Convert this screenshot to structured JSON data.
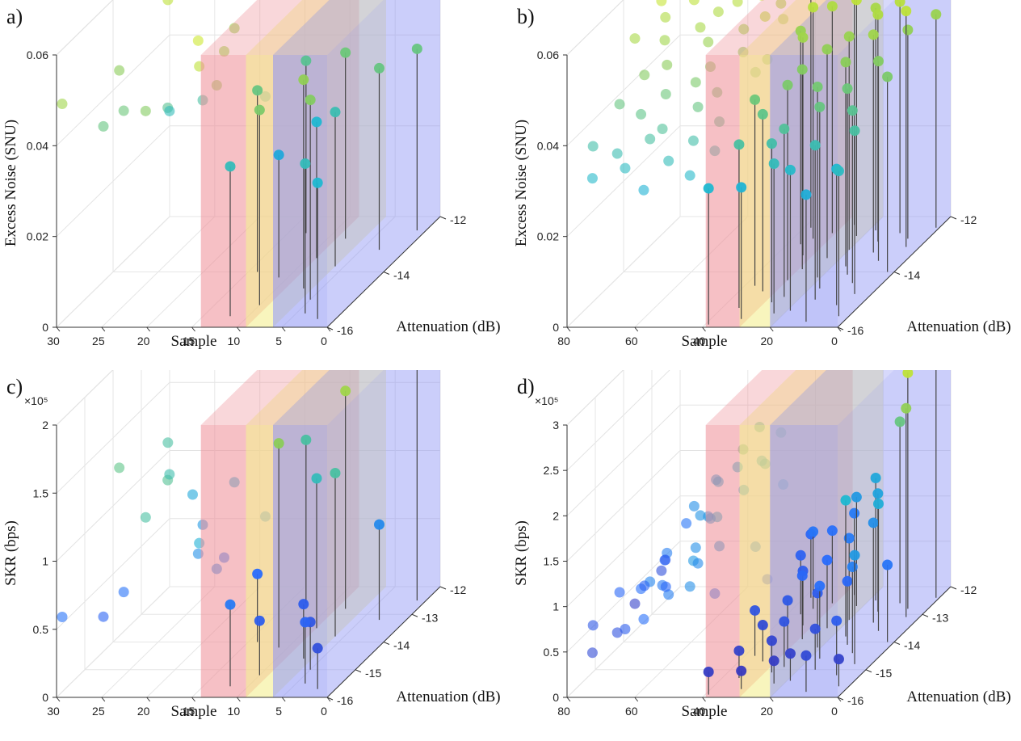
{
  "chart_data": [
    {
      "type": "scatter",
      "panel_label": "a)",
      "xlabel": "Sample",
      "ylabel": "Attenuation (dB)",
      "zlabel": "Excess Noise (SNU)",
      "z_exponent": "",
      "xlim": [
        0,
        30
      ],
      "ylim": [
        -16,
        -12
      ],
      "zlim": [
        0,
        0.06
      ],
      "x_ticks": [
        "0",
        "5",
        "10",
        "15",
        "20",
        "25",
        "30"
      ],
      "y_ticks": [
        "-16",
        "-14",
        "-12"
      ],
      "z_ticks": [
        "0",
        "0.02",
        "0.04",
        "0.06"
      ],
      "bands": [
        {
          "color": "#ef8c95",
          "x_from": 14,
          "x_to": 9
        },
        {
          "color": "#f2ec86",
          "x_from": 9,
          "x_to": 6
        },
        {
          "color": "#8c93f4",
          "x_from": 6,
          "x_to": 0
        }
      ],
      "series": [
        {
          "x": [
            1,
            2,
            3,
            4,
            5,
            6,
            7,
            8,
            9,
            10,
            11,
            12,
            13,
            14,
            15,
            16,
            17,
            18,
            19,
            20,
            21,
            22,
            23,
            24,
            25,
            26,
            27,
            28,
            29,
            30
          ],
          "y": [
            -12.5,
            -15.7,
            -13.2,
            -15.5,
            -15.0,
            -13.8,
            -14.6,
            -12.8,
            -13.5,
            -15.2,
            -14.2,
            -15.6,
            -12.6,
            -14.0,
            -13.4,
            -14.8,
            -15.1,
            -13.9,
            -14.5,
            -12.9,
            -13.7,
            -15.4,
            -14.3,
            -13.1,
            -13.6,
            -14.9,
            -15.3,
            -12.7,
            -14.1,
            -15.8
          ],
          "z": [
            0.04,
            0.03,
            0.04,
            0.033,
            0.044,
            0.034,
            0.046,
            0.041,
            0.03,
            0.043,
            0.027,
            0.033,
            0.038,
            0.04,
            0.035,
            0.046,
            0.052,
            0.048,
            0.054,
            0.047,
            0.036,
            0.044,
            0.038,
            0.057,
            0.033,
            0.041,
            0.04,
            0.052,
            0.045,
            0.048
          ]
        }
      ]
    },
    {
      "type": "scatter",
      "panel_label": "b)",
      "xlabel": "Sample",
      "ylabel": "Attenuation (dB)",
      "zlabel": "Excess Noise (SNU)",
      "z_exponent": "",
      "xlim": [
        0,
        80
      ],
      "ylim": [
        -16,
        -12
      ],
      "zlim": [
        0,
        0.06
      ],
      "x_ticks": [
        "0",
        "20",
        "40",
        "60",
        "80"
      ],
      "y_ticks": [
        "-16",
        "-14",
        "-12"
      ],
      "z_ticks": [
        "0",
        "0.02",
        "0.04",
        "0.06"
      ],
      "bands": [
        {
          "color": "#ef8c95",
          "x_from": 39,
          "x_to": 29
        },
        {
          "color": "#f2ec86",
          "x_from": 29,
          "x_to": 20
        },
        {
          "color": "#8c93f4",
          "x_from": 20,
          "x_to": 0
        }
      ],
      "series": [
        {
          "x": [
            1,
            2,
            3,
            4,
            5,
            6,
            7,
            8,
            9,
            10,
            11,
            12,
            13,
            14,
            15,
            16,
            17,
            18,
            19,
            20,
            21,
            22,
            23,
            24,
            25,
            26,
            27,
            28,
            29,
            30,
            31,
            32,
            33,
            34,
            35,
            36,
            37,
            38,
            39,
            40,
            41,
            42,
            43,
            44,
            45,
            46,
            47,
            48,
            49,
            50,
            51,
            52,
            53,
            54,
            55,
            56,
            57,
            58,
            59,
            60,
            61,
            62,
            63,
            64,
            65,
            66,
            67,
            68,
            69,
            70,
            71,
            72,
            73,
            74,
            75,
            76,
            77,
            78,
            79,
            80
          ],
          "y": [
            -12.4,
            -14.0,
            -15.6,
            -13.1,
            -14.8,
            -12.8,
            -15.2,
            -13.6,
            -14.4,
            -12.6,
            -15.8,
            -13.3,
            -14.1,
            -12.9,
            -15.0,
            -13.8,
            -14.6,
            -12.5,
            -15.4,
            -13.2,
            -14.2,
            -12.7,
            -15.5,
            -13.5,
            -14.9,
            -12.3,
            -15.1,
            -13.9,
            -14.3,
            -12.6,
            -15.7,
            -13.4,
            -14.7,
            -12.8,
            -15.3,
            -13.0,
            -14.5,
            -12.4,
            -15.9,
            -13.7,
            -14.0,
            -12.9,
            -15.2,
            -13.3,
            -14.8,
            -12.5,
            -15.6,
            -13.6,
            -14.4,
            -12.7,
            -15.0,
            -13.1,
            -14.6,
            -12.3,
            -15.4,
            -13.8,
            -14.2,
            -12.6,
            -15.8,
            -13.4,
            -14.9,
            -12.8,
            -15.1,
            -13.2,
            -14.3,
            -12.4,
            -15.5,
            -13.9,
            -14.7,
            -12.7,
            -15.3,
            -13.5,
            -14.1,
            -12.5,
            -15.7,
            -13.0,
            -14.5,
            -12.9,
            -15.2,
            -13.6
          ],
          "z": [
            0.047,
            0.043,
            0.032,
            0.052,
            0.036,
            0.046,
            0.03,
            0.044,
            0.038,
            0.051,
            0.028,
            0.048,
            0.041,
            0.05,
            0.034,
            0.045,
            0.04,
            0.049,
            0.031,
            0.047,
            0.042,
            0.052,
            0.033,
            0.046,
            0.037,
            0.053,
            0.035,
            0.044,
            0.043,
            0.05,
            0.029,
            0.048,
            0.039,
            0.051,
            0.036,
            0.047,
            0.041,
            0.054,
            0.03,
            0.045,
            0.044,
            0.049,
            0.034,
            0.052,
            0.038,
            0.05,
            0.031,
            0.046,
            0.042,
            0.053,
            0.035,
            0.048,
            0.04,
            0.055,
            0.033,
            0.044,
            0.043,
            0.051,
            0.029,
            0.047,
            0.037,
            0.05,
            0.036,
            0.049,
            0.041,
            0.056,
            0.032,
            0.045,
            0.039,
            0.052,
            0.034,
            0.048,
            0.044,
            0.054,
            0.031,
            0.05,
            0.04,
            0.053,
            0.035,
            0.049
          ]
        }
      ]
    },
    {
      "type": "scatter",
      "panel_label": "c)",
      "xlabel": "Sample",
      "ylabel": "Attenuation (dB)",
      "zlabel": "SKR (bps)",
      "z_exponent": "×10⁵",
      "xlim": [
        0,
        30
      ],
      "ylim": [
        -16,
        -12
      ],
      "zlim": [
        0,
        200000
      ],
      "x_ticks": [
        "0",
        "5",
        "10",
        "15",
        "20",
        "25",
        "30"
      ],
      "y_ticks": [
        "-16",
        "-15",
        "-14",
        "-13",
        "-12"
      ],
      "z_ticks": [
        "0",
        "0.5",
        "1",
        "1.5",
        "2"
      ],
      "bands": [
        {
          "color": "#ef8c95",
          "x_from": 14,
          "x_to": 9
        },
        {
          "color": "#f2ec86",
          "x_from": 9,
          "x_to": 6
        },
        {
          "color": "#8c93f4",
          "x_from": 6,
          "x_to": 0
        }
      ],
      "series": [
        {
          "x": [
            1,
            2,
            3,
            4,
            5,
            6,
            7,
            8,
            9,
            10,
            11,
            12,
            13,
            14,
            15,
            16,
            17,
            18,
            19,
            20,
            21,
            22,
            23,
            24,
            25,
            26,
            27,
            28,
            29,
            30
          ],
          "y": [
            -12.5,
            -15.7,
            -13.2,
            -15.5,
            -15.0,
            -13.8,
            -14.6,
            -12.8,
            -13.5,
            -15.2,
            -14.2,
            -15.6,
            -12.6,
            -14.0,
            -13.4,
            -14.8,
            -15.1,
            -13.9,
            -14.5,
            -12.9,
            -13.7,
            -15.4,
            -14.3,
            -13.1,
            -13.6,
            -14.9,
            -15.3,
            -12.7,
            -14.1,
            -15.8
          ],
          "z": [
            175000,
            30000,
            70000,
            45000,
            35000,
            120000,
            40000,
            160000,
            110000,
            40000,
            150000,
            60000,
            120000,
            50000,
            80000,
            70000,
            95000,
            60000,
            75000,
            95000,
            80000,
            120000,
            125000,
            90000,
            115000,
            55000,
            45000,
            120000,
            130000,
            55000
          ]
        }
      ]
    },
    {
      "type": "scatter",
      "panel_label": "d)",
      "xlabel": "Sample",
      "ylabel": "Attenuation (dB)",
      "zlabel": "SKR (bps)",
      "z_exponent": "×10⁵",
      "xlim": [
        0,
        80
      ],
      "ylim": [
        -16,
        -12
      ],
      "zlim": [
        0,
        300000
      ],
      "x_ticks": [
        "0",
        "20",
        "40",
        "60",
        "80"
      ],
      "y_ticks": [
        "-16",
        "-15",
        "-14",
        "-13",
        "-12"
      ],
      "z_ticks": [
        "0",
        "0.5",
        "1",
        "1.5",
        "2",
        "2.5",
        "3"
      ],
      "bands": [
        {
          "color": "#ef8c95",
          "x_from": 39,
          "x_to": 29
        },
        {
          "color": "#f2ec86",
          "x_from": 29,
          "x_to": 20
        },
        {
          "color": "#8c93f4",
          "x_from": 20,
          "x_to": 0
        }
      ],
      "series": [
        {
          "x": [
            1,
            2,
            3,
            4,
            5,
            6,
            7,
            8,
            9,
            10,
            11,
            12,
            13,
            14,
            15,
            16,
            17,
            18,
            19,
            20,
            21,
            22,
            23,
            24,
            25,
            26,
            27,
            28,
            29,
            30,
            31,
            32,
            33,
            34,
            35,
            36,
            37,
            38,
            39,
            40,
            41,
            42,
            43,
            44,
            45,
            46,
            47,
            48,
            49,
            50,
            51,
            52,
            53,
            54,
            55,
            56,
            57,
            58,
            59,
            60,
            61,
            62,
            63,
            64,
            65,
            66,
            67,
            68,
            69,
            70,
            71,
            72,
            73,
            74,
            75,
            76,
            77,
            78,
            79,
            80
          ],
          "y": [
            -12.4,
            -14.0,
            -15.6,
            -13.1,
            -14.8,
            -12.8,
            -15.2,
            -13.6,
            -14.4,
            -12.6,
            -15.8,
            -13.3,
            -14.1,
            -12.9,
            -15.0,
            -13.8,
            -14.6,
            -12.5,
            -15.4,
            -13.2,
            -14.2,
            -12.7,
            -15.5,
            -13.5,
            -14.9,
            -12.3,
            -15.1,
            -13.9,
            -14.3,
            -12.6,
            -15.7,
            -13.4,
            -14.7,
            -12.8,
            -15.3,
            -13.0,
            -14.5,
            -12.4,
            -15.9,
            -13.7,
            -14.0,
            -12.9,
            -15.2,
            -13.3,
            -14.8,
            -12.5,
            -15.6,
            -13.6,
            -14.4,
            -12.7,
            -15.0,
            -13.1,
            -14.6,
            -12.3,
            -15.4,
            -13.8,
            -14.2,
            -12.6,
            -15.8,
            -13.4,
            -14.9,
            -12.8,
            -15.1,
            -13.2,
            -14.3,
            -12.4,
            -15.5,
            -13.9,
            -14.7,
            -12.7,
            -15.3,
            -13.5,
            -14.1,
            -12.5,
            -15.7,
            -13.0,
            -14.5,
            -12.9,
            -15.2,
            -13.6
          ],
          "z": [
            270000,
            85000,
            30000,
            230000,
            120000,
            260000,
            60000,
            140000,
            95000,
            200000,
            40000,
            110000,
            70000,
            130000,
            45000,
            150000,
            80000,
            135000,
            30000,
            90000,
            60000,
            120000,
            25000,
            75000,
            50000,
            90000,
            35000,
            70000,
            55000,
            80000,
            20000,
            60000,
            40000,
            85000,
            30000,
            65000,
            50000,
            70000,
            25000,
            60000,
            105000,
            140000,
            90000,
            175000,
            130000,
            185000,
            110000,
            200000,
            150000,
            160000,
            120000,
            140000,
            105000,
            185000,
            95000,
            130000,
            110000,
            150000,
            80000,
            120000,
            90000,
            140000,
            100000,
            115000,
            70000,
            130000,
            60000,
            95000,
            80000,
            110000,
            50000,
            75000,
            65000,
            85000,
            40000,
            60000,
            70000,
            45000,
            55000,
            30000
          ]
        }
      ]
    }
  ]
}
